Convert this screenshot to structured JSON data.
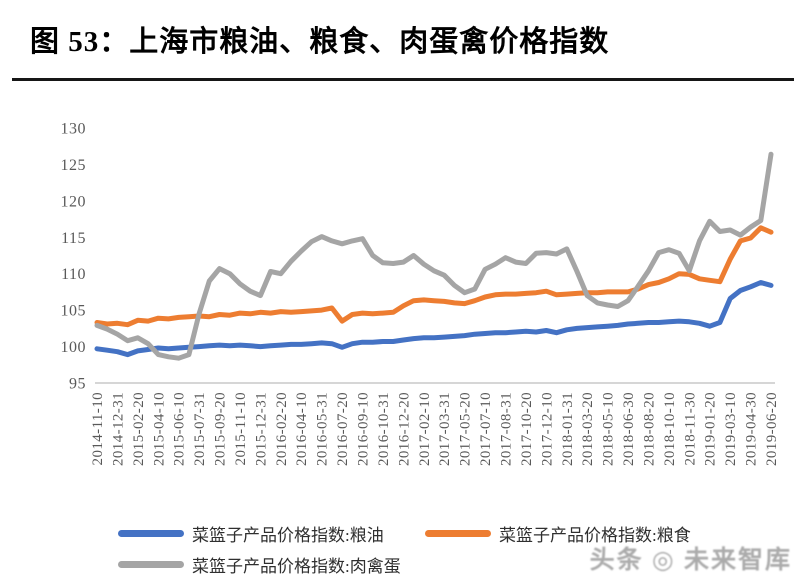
{
  "header": {
    "title": "图 53：上海市粮油、粮食、肉蛋禽价格指数"
  },
  "watermark": {
    "text": "头条 ◎ 未来智库"
  },
  "chart_data": {
    "type": "line",
    "title": "上海市粮油、粮食、肉蛋禽价格指数",
    "xlabel": "",
    "ylabel": "",
    "grid": false,
    "legend_position": "bottom",
    "axis_color": "#c8c8c8",
    "tick_label_color": "#595959",
    "y_axis": {
      "min": 95,
      "max": 130,
      "step": 5,
      "ticks": [
        130,
        125,
        120,
        115,
        110,
        105,
        100,
        95
      ]
    },
    "x_tick_labels": [
      "2014-11-10",
      "2014-12-31",
      "2015-02-20",
      "2015-04-10",
      "2015-06-10",
      "2015-07-31",
      "2015-09-20",
      "2015-11-10",
      "2015-12-31",
      "2016-02-20",
      "2016-04-10",
      "2016-05-31",
      "2016-07-20",
      "2016-09-10",
      "2016-10-31",
      "2016-12-20",
      "2017-02-10",
      "2017-03-31",
      "2017-05-20",
      "2017-07-10",
      "2017-08-31",
      "2017-10-20",
      "2017-12-10",
      "2018-01-31",
      "2018-03-20",
      "2018-05-10",
      "2018-06-30",
      "2018-08-20",
      "2018-10-10",
      "2018-11-30",
      "2019-01-20",
      "2019-03-10",
      "2019-04-30",
      "2019-06-20"
    ],
    "points_per_label_interval": 2,
    "series": [
      {
        "name": "菜篮子产品价格指数:粮油",
        "color": "#4472C4",
        "values": [
          99.7,
          99.5,
          99.3,
          98.9,
          99.4,
          99.6,
          99.8,
          99.7,
          99.8,
          99.9,
          100.0,
          100.1,
          100.2,
          100.1,
          100.2,
          100.1,
          100.0,
          100.1,
          100.2,
          100.3,
          100.3,
          100.4,
          100.5,
          100.4,
          99.9,
          100.4,
          100.6,
          100.6,
          100.7,
          100.7,
          100.9,
          101.1,
          101.2,
          101.2,
          101.3,
          101.4,
          101.5,
          101.7,
          101.8,
          101.9,
          101.9,
          102.0,
          102.1,
          102.0,
          102.2,
          101.9,
          102.3,
          102.5,
          102.6,
          102.7,
          102.8,
          102.9,
          103.1,
          103.2,
          103.3,
          103.3,
          103.4,
          103.5,
          103.4,
          103.2,
          102.8,
          103.3,
          106.6,
          107.7,
          108.2,
          108.8,
          108.4
        ]
      },
      {
        "name": "菜篮子产品价格指数:粮食",
        "color": "#ED7D31",
        "values": [
          103.3,
          103.1,
          103.2,
          103.0,
          103.6,
          103.5,
          103.9,
          103.8,
          104.0,
          104.1,
          104.2,
          104.1,
          104.4,
          104.3,
          104.6,
          104.5,
          104.7,
          104.6,
          104.8,
          104.7,
          104.8,
          104.9,
          105.0,
          105.3,
          103.5,
          104.4,
          104.6,
          104.5,
          104.6,
          104.7,
          105.6,
          106.3,
          106.4,
          106.3,
          106.2,
          106.0,
          105.9,
          106.3,
          106.8,
          107.1,
          107.2,
          107.2,
          107.3,
          107.4,
          107.6,
          107.1,
          107.2,
          107.3,
          107.4,
          107.4,
          107.5,
          107.5,
          107.5,
          107.9,
          108.5,
          108.8,
          109.3,
          110.0,
          109.9,
          109.3,
          109.1,
          108.9,
          112.0,
          114.5,
          114.9,
          116.3,
          115.7
        ]
      },
      {
        "name": "菜篮子产品价格指数:肉禽蛋",
        "color": "#A5A5A5",
        "values": [
          102.9,
          102.4,
          101.7,
          100.8,
          101.2,
          100.4,
          98.9,
          98.6,
          98.4,
          98.9,
          104.5,
          109.0,
          110.7,
          110.0,
          108.6,
          107.6,
          107.0,
          110.3,
          110.0,
          111.7,
          113.1,
          114.4,
          115.1,
          114.5,
          114.1,
          114.5,
          114.8,
          112.5,
          111.5,
          111.4,
          111.6,
          112.5,
          111.3,
          110.4,
          109.8,
          108.4,
          107.4,
          107.9,
          110.6,
          111.3,
          112.2,
          111.6,
          111.4,
          112.8,
          112.9,
          112.7,
          113.4,
          110.3,
          107.0,
          106.0,
          105.7,
          105.5,
          106.3,
          108.3,
          110.4,
          112.9,
          113.3,
          112.8,
          110.4,
          114.5,
          117.2,
          115.8,
          116.0,
          115.3,
          116.4,
          117.3,
          126.4
        ]
      }
    ]
  },
  "legend": {
    "items_order_note": "row1: 粮油, 粮食; row2: 肉禽蛋"
  }
}
